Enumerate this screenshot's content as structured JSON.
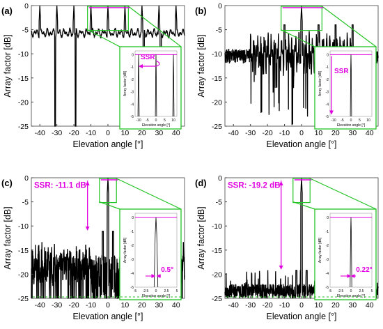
{
  "colors": {
    "trace": "#000000",
    "zoom": "#22c322",
    "annot": "#e000e0",
    "axis": "#404040"
  },
  "chart_data": [
    {
      "type": "line",
      "panel_label": "(a)",
      "xlabel": "Elevation angle [°]",
      "ylabel": "Array factor [dB]",
      "xlim": [
        -45,
        45
      ],
      "ylim": [
        -25,
        0
      ],
      "xticks": [
        "-40",
        "-30",
        "-20",
        "-10",
        "0",
        "10",
        "20",
        "30",
        "40"
      ],
      "yticks": [
        "0",
        "-5",
        "-10",
        "-15",
        "-20",
        "-25"
      ],
      "peaks_x": [
        -40,
        -30,
        -20,
        -10,
        0,
        10,
        20,
        30,
        40
      ],
      "baseline_db": -5.5,
      "grid": false,
      "inset": {
        "xlabel": "Elevation angle [°]",
        "ylabel": "Array factor [dB]",
        "xlim": [
          -12,
          12
        ],
        "ylim": [
          -5,
          0.3
        ],
        "xticks": [
          "-10",
          "-5",
          "0",
          "5",
          "10"
        ],
        "yticks": [
          "0",
          "-1",
          "-2",
          "-3",
          "-4",
          "-5"
        ],
        "peaks_x": [
          -10,
          0,
          10
        ],
        "annotation": "SSR"
      }
    },
    {
      "type": "line",
      "panel_label": "(b)",
      "xlabel": "Elevation angle [°]",
      "ylabel": "Array factor [dB]",
      "xlim": [
        -45,
        45
      ],
      "ylim": [
        -25,
        0
      ],
      "xticks": [
        "-40",
        "-30",
        "-20",
        "-10",
        "0",
        "10",
        "20",
        "30",
        "40"
      ],
      "yticks": [
        "0",
        "-5",
        "-10",
        "-15",
        "-20",
        "-25"
      ],
      "peaks_x": [
        0
      ],
      "grid": false,
      "inset": {
        "xlabel": "Elevation angle [°]",
        "ylabel": "Array factor [dB]",
        "xlim": [
          -12,
          12
        ],
        "ylim": [
          -5,
          0.3
        ],
        "xticks": [
          "-10",
          "-5",
          "0",
          "5",
          "10"
        ],
        "yticks": [
          "0",
          "-1",
          "-2",
          "-3",
          "-4",
          "-5"
        ],
        "peaks_x": [
          0
        ],
        "annotation": "SSR"
      }
    },
    {
      "type": "line",
      "panel_label": "(c)",
      "xlabel": "Elevation angle [°]",
      "ylabel": "Array factor [dB]",
      "xlim": [
        -45,
        45
      ],
      "ylim": [
        -25,
        0
      ],
      "xticks": [
        "-40",
        "-30",
        "-20",
        "-10",
        "0",
        "10",
        "20",
        "30",
        "40"
      ],
      "yticks": [
        "0",
        "-5",
        "-10",
        "-15",
        "-20",
        "-25"
      ],
      "peaks_x": [
        0
      ],
      "ssr_db": -11.1,
      "annotation": "SSR: -11.1 dB",
      "grid": false,
      "inset": {
        "xlabel": "Elevation angle [°]",
        "ylabel": "Array factor [dB]",
        "xlim": [
          -5,
          5
        ],
        "ylim": [
          -5,
          0.3
        ],
        "xticks": [
          "-5",
          "-2.5",
          "0",
          "2.5",
          "5"
        ],
        "yticks": [
          "0",
          "-1",
          "-2",
          "-3",
          "-4",
          "-5"
        ],
        "peaks_x": [
          0
        ],
        "beamwidth_deg": 0.5,
        "annotation": "0.5°"
      }
    },
    {
      "type": "line",
      "panel_label": "(d)",
      "xlabel": "Elevation angle [°]",
      "ylabel": "Array factor [dB]",
      "xlim": [
        -45,
        45
      ],
      "ylim": [
        -25,
        0
      ],
      "xticks": [
        "-40",
        "-30",
        "-20",
        "-10",
        "0",
        "10",
        "20",
        "30",
        "40"
      ],
      "yticks": [
        "0",
        "-5",
        "-10",
        "-15",
        "-20",
        "-25"
      ],
      "peaks_x": [
        0
      ],
      "ssr_db": -19.2,
      "annotation": "SSR: -19.2 dB",
      "grid": false,
      "inset": {
        "xlabel": "Elevation angle [°]",
        "ylabel": "Array factor [dB]",
        "xlim": [
          -5,
          5
        ],
        "ylim": [
          -5,
          0.3
        ],
        "xticks": [
          "-5",
          "-2.5",
          "0",
          "2.5",
          "5"
        ],
        "yticks": [
          "0",
          "-1",
          "-2",
          "-3",
          "-4",
          "-5"
        ],
        "peaks_x": [
          0
        ],
        "beamwidth_deg": 0.22,
        "annotation": "0.22°"
      }
    }
  ]
}
